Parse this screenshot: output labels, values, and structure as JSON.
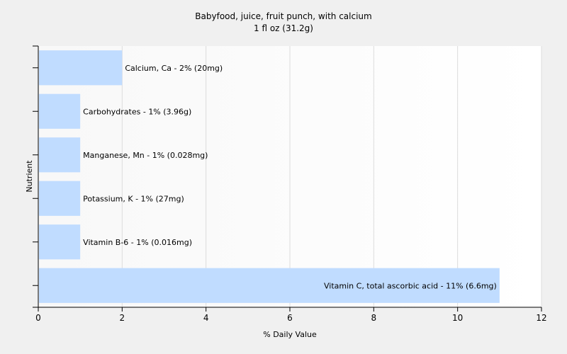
{
  "chart_data": {
    "type": "bar",
    "orientation": "horizontal",
    "title": "Babyfood, juice, fruit punch, with calcium",
    "subtitle": "1 fl oz (31.2g)",
    "xlabel": "% Daily Value",
    "ylabel": "Nutrient",
    "xlim": [
      0,
      12
    ],
    "xticks": [
      0,
      2,
      4,
      6,
      8,
      10,
      12
    ],
    "grid": "vertical",
    "bar_color": "#c0dcff",
    "categories": [
      "Calcium, Ca",
      "Carbohydrates",
      "Manganese, Mn",
      "Potassium, K",
      "Vitamin B-6",
      "Vitamin C, total ascorbic acid"
    ],
    "values": [
      2,
      1,
      1,
      1,
      1,
      11
    ],
    "data_labels": [
      "Calcium, Ca - 2% (20mg)",
      "Carbohydrates - 1% (3.96g)",
      "Manganese, Mn - 1% (0.028mg)",
      "Potassium, K - 1% (27mg)",
      "Vitamin B-6 - 1% (0.016mg)",
      "Vitamin C, total ascorbic acid - 11% (6.6mg)"
    ]
  }
}
